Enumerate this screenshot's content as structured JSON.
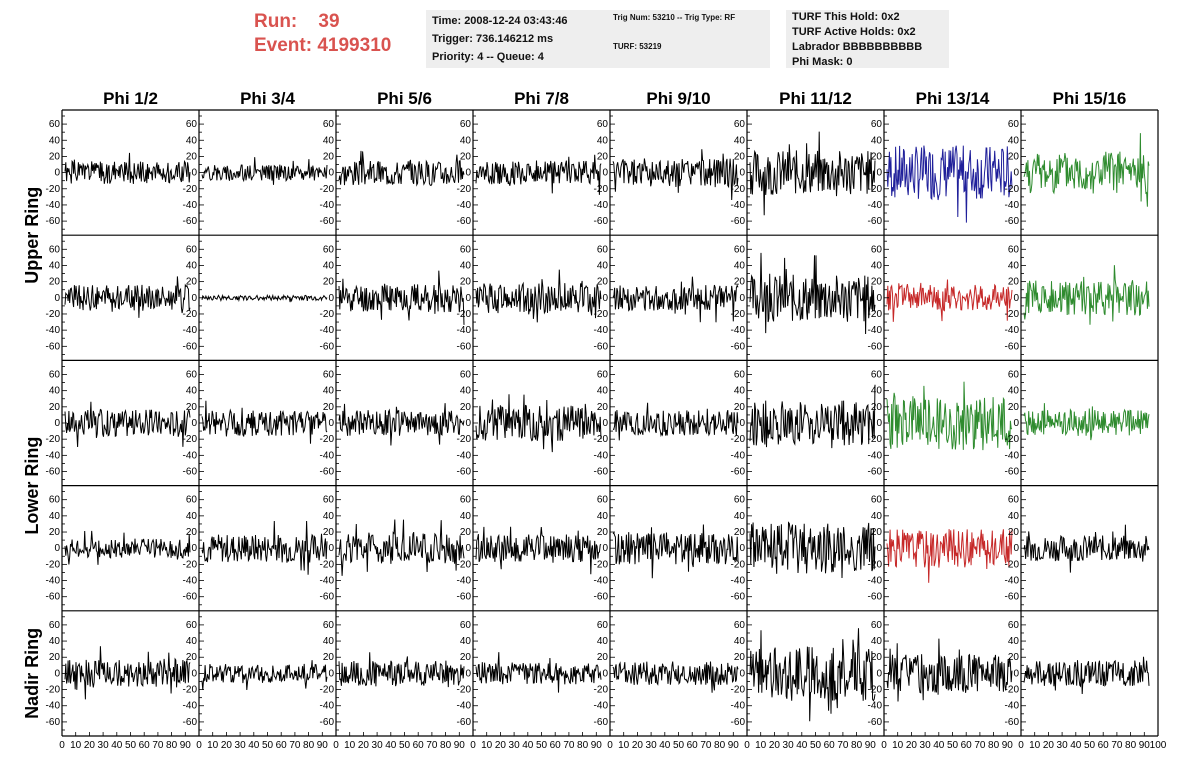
{
  "header": {
    "run_label": "Run:",
    "run_value": "39",
    "event_label": "Event:",
    "event_value": "4199310",
    "time": "Time: 2008-12-24 03:43:46",
    "trigger": "Trigger: 736.146212 ms",
    "priority": "Priority: 4 -- Queue: 4",
    "trig_num": "Trig Num: 53210 -- Trig Type: RF",
    "turf": "TURF: 53219",
    "turf_hold": "TURF This Hold: 0x2",
    "turf_active": "TURF Active Holds: 0x2",
    "labrador": "Labrador BBBBBBBBBB",
    "phi_mask": "Phi Mask: 0"
  },
  "colors": {
    "black": "#000000",
    "blue": "#1f1f9a",
    "red": "#c62828",
    "green": "#2e8b2e"
  },
  "chart_data": {
    "type": "line",
    "columns": [
      "Phi 1/2",
      "Phi 3/4",
      "Phi 5/6",
      "Phi 7/8",
      "Phi 9/10",
      "Phi 11/12",
      "Phi 13/14",
      "Phi 15/16"
    ],
    "ring_labels": [
      {
        "text": "Upper Ring",
        "rows": [
          0,
          1
        ]
      },
      {
        "text": "Lower Ring",
        "rows": [
          2,
          3
        ]
      },
      {
        "text": "Nadir Ring",
        "rows": [
          4
        ]
      }
    ],
    "xlim": [
      0,
      100
    ],
    "ylim": [
      -70,
      70
    ],
    "yticks_labeled": [
      -60,
      -40,
      -20,
      0,
      20,
      40,
      60
    ],
    "xtick_labels": [
      "0",
      "10",
      "20",
      "30",
      "40",
      "50",
      "60",
      "70",
      "80",
      "90",
      "100"
    ],
    "traces": [
      [
        {
          "amp": 14,
          "color": "black",
          "seed": 1
        },
        {
          "amp": 10,
          "color": "black",
          "seed": 2
        },
        {
          "amp": 16,
          "color": "black",
          "seed": 3
        },
        {
          "amp": 15,
          "color": "black",
          "seed": 4
        },
        {
          "amp": 18,
          "color": "black",
          "seed": 5
        },
        {
          "amp": 28,
          "color": "black",
          "seed": 6
        },
        {
          "amp": 34,
          "color": "blue",
          "seed": 7
        },
        {
          "amp": 26,
          "color": "green",
          "seed": 8
        }
      ],
      [
        {
          "amp": 16,
          "color": "black",
          "seed": 9
        },
        {
          "amp": 3,
          "color": "black",
          "seed": 10
        },
        {
          "amp": 18,
          "color": "black",
          "seed": 11
        },
        {
          "amp": 19,
          "color": "black",
          "seed": 12
        },
        {
          "amp": 16,
          "color": "black",
          "seed": 13
        },
        {
          "amp": 30,
          "color": "black",
          "seed": 14
        },
        {
          "amp": 16,
          "color": "red",
          "seed": 15
        },
        {
          "amp": 22,
          "color": "green",
          "seed": 16
        }
      ],
      [
        {
          "amp": 17,
          "color": "black",
          "seed": 17
        },
        {
          "amp": 16,
          "color": "black",
          "seed": 18
        },
        {
          "amp": 16,
          "color": "black",
          "seed": 19
        },
        {
          "amp": 22,
          "color": "black",
          "seed": 20
        },
        {
          "amp": 16,
          "color": "black",
          "seed": 21
        },
        {
          "amp": 28,
          "color": "black",
          "seed": 22
        },
        {
          "amp": 34,
          "color": "green",
          "seed": 23
        },
        {
          "amp": 16,
          "color": "green",
          "seed": 24
        }
      ],
      [
        {
          "amp": 12,
          "color": "black",
          "seed": 25
        },
        {
          "amp": 18,
          "color": "black",
          "seed": 26
        },
        {
          "amp": 20,
          "color": "black",
          "seed": 27
        },
        {
          "amp": 18,
          "color": "black",
          "seed": 28
        },
        {
          "amp": 20,
          "color": "black",
          "seed": 29
        },
        {
          "amp": 32,
          "color": "black",
          "seed": 30
        },
        {
          "amp": 24,
          "color": "red",
          "seed": 31
        },
        {
          "amp": 16,
          "color": "black",
          "seed": 32
        }
      ],
      [
        {
          "amp": 18,
          "color": "black",
          "seed": 33
        },
        {
          "amp": 12,
          "color": "black",
          "seed": 34
        },
        {
          "amp": 16,
          "color": "black",
          "seed": 35
        },
        {
          "amp": 14,
          "color": "black",
          "seed": 36
        },
        {
          "amp": 15,
          "color": "black",
          "seed": 37
        },
        {
          "amp": 34,
          "color": "black",
          "seed": 38
        },
        {
          "amp": 24,
          "color": "black",
          "seed": 39
        },
        {
          "amp": 16,
          "color": "black",
          "seed": 40
        }
      ]
    ]
  }
}
